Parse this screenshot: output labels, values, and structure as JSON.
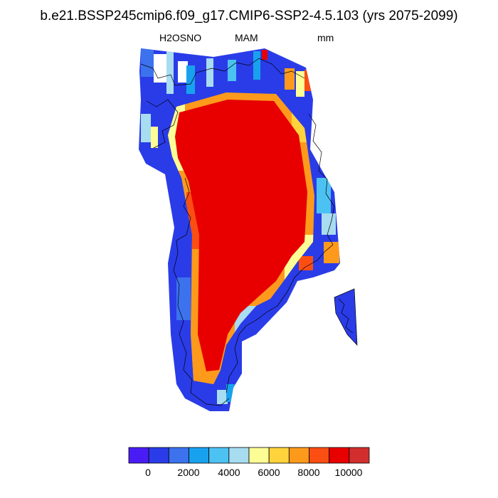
{
  "title": "b.e21.BSSP245cmip6.f09_g17.CMIP6-SSP2-4.5.103 (yrs 2075-2099)",
  "subtitle": {
    "variable": "H2OSNO",
    "season": "MAM",
    "units": "mm"
  },
  "colorbar": {
    "colors": [
      "#4a1cf5",
      "#2a3ce8",
      "#3c72ee",
      "#18a2ee",
      "#4cc2f2",
      "#a8dcf0",
      "#fdfd96",
      "#fed33b",
      "#fd9a1c",
      "#fb4e12",
      "#e80000",
      "#d22e2e"
    ],
    "tick_labels": [
      "0",
      "2000",
      "4000",
      "6000",
      "8000",
      "10000"
    ]
  },
  "chart_data": {
    "type": "heatmap",
    "title": "b.e21.BSSP245cmip6.f09_g17.CMIP6-SSP2-4.5.103 (yrs 2075-2099)",
    "variable": "H2OSNO",
    "season": "MAM",
    "units": "mm",
    "region": "Greenland",
    "color_scale": {
      "levels": [
        -1000,
        0,
        1000,
        2000,
        3000,
        4000,
        5000,
        6000,
        7000,
        8000,
        9000,
        10000,
        11000
      ],
      "ticks": [
        0,
        2000,
        4000,
        6000,
        8000,
        10000
      ]
    },
    "zones": [
      {
        "description": "interior ice sheet",
        "value_range": [
          10000,
          11000
        ]
      },
      {
        "description": "inner margin",
        "value_range": [
          5000,
          10000
        ]
      },
      {
        "description": "coastal fringe",
        "value_range": [
          0,
          4000
        ]
      }
    ]
  }
}
